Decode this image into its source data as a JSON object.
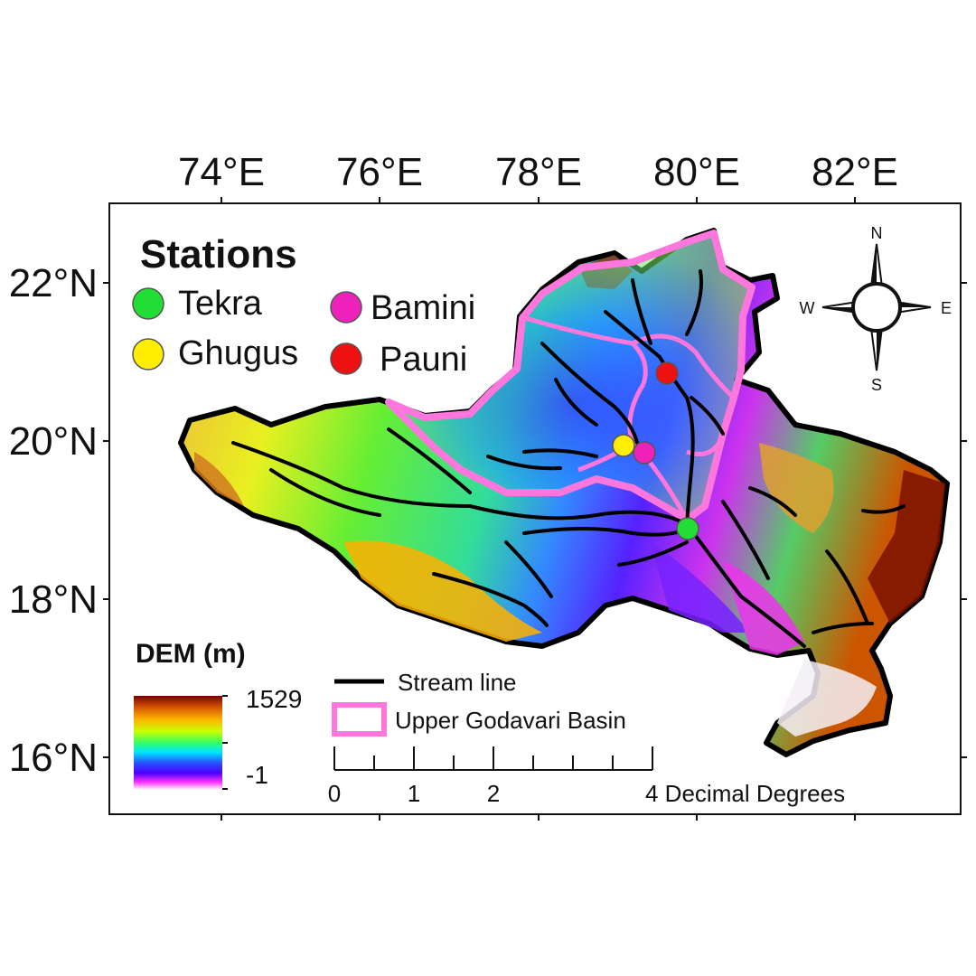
{
  "lon_ticks": [
    "74°E",
    "76°E",
    "78°E",
    "80°E",
    "82°E"
  ],
  "lat_ticks": [
    "22°N",
    "20°N",
    "18°N",
    "16°N"
  ],
  "stations_legend": {
    "title": "Stations",
    "items": [
      {
        "name": "Tekra",
        "color": "#22dd33"
      },
      {
        "name": "Ghugus",
        "color": "#ffee00"
      },
      {
        "name": "Bamini",
        "color": "#ee22bb"
      },
      {
        "name": "Pauni",
        "color": "#ee1111"
      }
    ]
  },
  "compass": {
    "n": "N",
    "s": "S",
    "e": "E",
    "w": "W"
  },
  "dem_legend": {
    "title": "DEM (m)",
    "max": "1529",
    "min": "-1"
  },
  "layers_legend": {
    "stream": "Stream line",
    "basin": "Upper Godavari Basin",
    "colors": {
      "stream": "#000000",
      "basin": "#ff77dd"
    }
  },
  "scale_bar": {
    "labels": [
      "0",
      "1",
      "2"
    ],
    "end_label": "4 Decimal Degrees"
  }
}
